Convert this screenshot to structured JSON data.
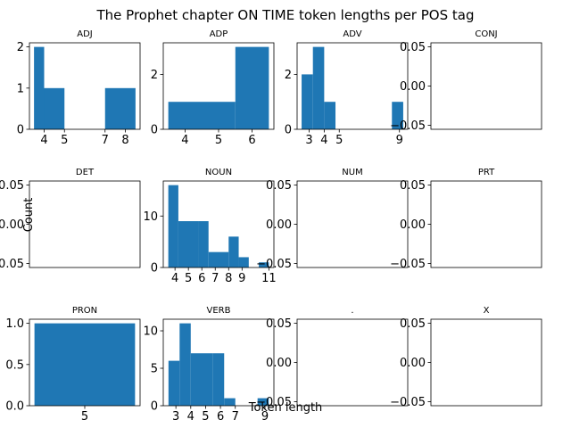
{
  "title": "The Prophet chapter ON TIME token lengths per POS tag",
  "xlabel": "Token length",
  "ylabel": "Count",
  "bar_color": "#1f77b4",
  "chart_data": [
    {
      "type": "bar",
      "title": "ADJ",
      "bins": [
        [
          3.5,
          4,
          2
        ],
        [
          4,
          5,
          1
        ],
        [
          7,
          8,
          1
        ],
        [
          8,
          8.5,
          1
        ]
      ],
      "xlim": [
        3.275,
        8.725
      ],
      "ylim": [
        0,
        2.1
      ],
      "xticks": [
        4,
        5,
        7,
        8
      ],
      "yticks": [
        0,
        1,
        2
      ],
      "ytick_labels": [
        "0",
        "1",
        "2"
      ]
    },
    {
      "type": "bar",
      "title": "ADP",
      "bins": [
        [
          3.5,
          5.5,
          1
        ],
        [
          5.5,
          6.5,
          3
        ]
      ],
      "xlim": [
        3.35,
        6.65
      ],
      "ylim": [
        0,
        3.15
      ],
      "xticks": [
        4,
        5,
        6
      ],
      "yticks": [
        0,
        2
      ],
      "ytick_labels": [
        "0",
        "2"
      ]
    },
    {
      "type": "bar",
      "title": "ADV",
      "bins": [
        [
          2.5,
          3.25,
          2
        ],
        [
          3.25,
          4,
          3
        ],
        [
          4,
          4.75,
          1
        ],
        [
          8.5,
          9.25,
          1
        ]
      ],
      "xlim": [
        2.2,
        9.55
      ],
      "ylim": [
        0,
        3.15
      ],
      "xticks": [
        3,
        4,
        5,
        9
      ],
      "yticks": [
        0,
        2
      ],
      "ytick_labels": [
        "0",
        "2"
      ]
    },
    {
      "type": "bar",
      "title": "CONJ",
      "bins": [],
      "xlim": [
        -0.055,
        0.055
      ],
      "ylim": [
        -0.055,
        0.055
      ],
      "xticks": [],
      "yticks": [
        0.05,
        0,
        -0.05
      ],
      "ytick_labels": [
        "0.05",
        "0.00",
        "−0.05"
      ]
    },
    {
      "type": "bar",
      "title": "DET",
      "bins": [],
      "xlim": [
        -0.055,
        0.055
      ],
      "ylim": [
        -0.055,
        0.055
      ],
      "xticks": [],
      "yticks": [
        0.05,
        0,
        -0.05
      ],
      "ytick_labels": [
        "0.05",
        "0.00",
        "−0.05"
      ]
    },
    {
      "type": "bar",
      "title": "NOUN",
      "bins": [
        [
          3.5,
          4.25,
          16
        ],
        [
          4.25,
          5.75,
          9
        ],
        [
          5.75,
          6.5,
          9
        ],
        [
          6.5,
          7.25,
          3
        ],
        [
          7.25,
          8,
          3
        ],
        [
          8,
          8.75,
          6
        ],
        [
          8.75,
          9.5,
          2
        ],
        [
          10.25,
          11,
          1
        ]
      ],
      "xlim": [
        3.125,
        11.375
      ],
      "ylim": [
        0,
        16.8
      ],
      "xticks": [
        4,
        5,
        6,
        7,
        8,
        9,
        11
      ],
      "yticks": [
        0,
        10
      ],
      "ytick_labels": [
        "0",
        "10"
      ]
    },
    {
      "type": "bar",
      "title": "NUM",
      "bins": [],
      "xlim": [
        -0.055,
        0.055
      ],
      "ylim": [
        -0.055,
        0.055
      ],
      "xticks": [],
      "yticks": [
        0.05,
        0,
        -0.05
      ],
      "ytick_labels": [
        "0.05",
        "0.00",
        "−0.05"
      ]
    },
    {
      "type": "bar",
      "title": "PRT",
      "bins": [],
      "xlim": [
        -0.055,
        0.055
      ],
      "ylim": [
        -0.055,
        0.055
      ],
      "xticks": [],
      "yticks": [
        0.05,
        0,
        -0.05
      ],
      "ytick_labels": [
        "0.05",
        "0.00",
        "−0.05"
      ]
    },
    {
      "type": "bar",
      "title": "PRON",
      "bins": [
        [
          4.5,
          5.5,
          1
        ]
      ],
      "xlim": [
        4.45,
        5.55
      ],
      "ylim": [
        0,
        1.05
      ],
      "xticks": [
        5
      ],
      "yticks": [
        0,
        0.5,
        1
      ],
      "ytick_labels": [
        "0.0",
        "0.5",
        "1.0"
      ]
    },
    {
      "type": "bar",
      "title": "VERB",
      "bins": [
        [
          2.5,
          3.25,
          6
        ],
        [
          3.25,
          4,
          11
        ],
        [
          4,
          5.5,
          7
        ],
        [
          5.5,
          6.25,
          7
        ],
        [
          6.25,
          7,
          1
        ],
        [
          8.5,
          9.25,
          1
        ]
      ],
      "xlim": [
        2.15,
        9.6
      ],
      "ylim": [
        0,
        11.55
      ],
      "xticks": [
        3,
        4,
        5,
        6,
        7,
        9
      ],
      "yticks": [
        0,
        5,
        10
      ],
      "ytick_labels": [
        "0",
        "5",
        "10"
      ]
    },
    {
      "type": "bar",
      "title": ".",
      "bins": [],
      "xlim": [
        -0.055,
        0.055
      ],
      "ylim": [
        -0.055,
        0.055
      ],
      "xticks": [],
      "yticks": [
        0.05,
        0,
        -0.05
      ],
      "ytick_labels": [
        "0.05",
        "0.00",
        "−0.05"
      ]
    },
    {
      "type": "bar",
      "title": "X",
      "bins": [],
      "xlim": [
        -0.055,
        0.055
      ],
      "ylim": [
        -0.055,
        0.055
      ],
      "xticks": [],
      "yticks": [
        0.05,
        0,
        -0.05
      ],
      "ytick_labels": [
        "0.05",
        "0.00",
        "−0.05"
      ]
    }
  ]
}
